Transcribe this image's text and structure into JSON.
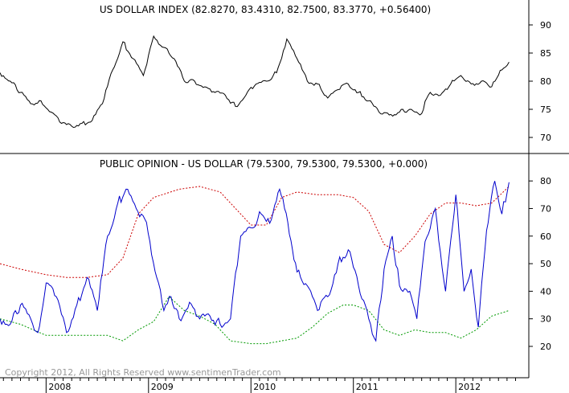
{
  "footer": "Copyright 2012, All Rights Reserved  www.sentimenTrader.com",
  "colors": {
    "price": "#000000",
    "opinion": "#0000cc",
    "upper_band": "#cc0000",
    "lower_band": "#009900"
  },
  "x_axis": {
    "range": [
      2007.55,
      2012.65
    ],
    "labels": [
      {
        "label": "2008",
        "x": 2008.0
      },
      {
        "label": "2009",
        "x": 2009.0
      },
      {
        "label": "2010",
        "x": 2010.0
      },
      {
        "label": "2011",
        "x": 2011.0
      },
      {
        "label": "2012",
        "x": 2012.0
      }
    ]
  },
  "chart_data": [
    {
      "type": "line",
      "title": "US DOLLAR INDEX (82.8270, 83.4310, 82.7500, 83.3770, +0.56400)",
      "ylim": [
        69,
        93
      ],
      "y_ticks": [
        70,
        75,
        80,
        85,
        90
      ],
      "grid": false,
      "series": [
        {
          "x": [
            2007.55,
            2007.65,
            2007.75,
            2007.85,
            2007.95,
            2008.05,
            2008.15,
            2008.25,
            2008.35,
            2008.45,
            2008.55,
            2008.65,
            2008.75,
            2008.85,
            2008.95,
            2009.05,
            2009.15,
            2009.25,
            2009.35,
            2009.45,
            2009.55,
            2009.65,
            2009.75,
            2009.85,
            2009.95,
            2010.05,
            2010.15,
            2010.25,
            2010.35,
            2010.45,
            2010.55,
            2010.65,
            2010.75,
            2010.85,
            2010.95,
            2011.05,
            2011.15,
            2011.25,
            2011.35,
            2011.45,
            2011.55,
            2011.65,
            2011.75,
            2011.85,
            2011.95,
            2012.05,
            2012.15,
            2012.25,
            2012.35,
            2012.45,
            2012.52
          ],
          "values": [
            81.5,
            80.0,
            78.0,
            76.0,
            76.5,
            74.5,
            72.5,
            72.0,
            72.5,
            73.0,
            76.0,
            82.0,
            87.0,
            84.0,
            81.0,
            88.0,
            86.0,
            84.0,
            80.0,
            80.0,
            79.0,
            78.0,
            77.5,
            75.5,
            77.5,
            79.5,
            80.0,
            81.5,
            87.5,
            84.0,
            80.0,
            79.5,
            77.0,
            78.5,
            79.5,
            78.0,
            76.5,
            74.5,
            74.0,
            74.5,
            75.0,
            74.0,
            78.0,
            77.5,
            79.5,
            81.0,
            79.5,
            80.0,
            79.0,
            82.0,
            83.4
          ]
        }
      ]
    },
    {
      "type": "line",
      "title": "PUBLIC OPINION - US DOLLAR (79.5300, 79.5300, 79.5300, +0.000)",
      "ylim": [
        13,
        85
      ],
      "y_ticks": [
        20,
        30,
        40,
        50,
        60,
        70,
        80
      ],
      "grid": false,
      "series": [
        {
          "x": [
            2007.55,
            2007.65,
            2007.75,
            2007.85,
            2007.92,
            2008.0,
            2008.1,
            2008.2,
            2008.3,
            2008.4,
            2008.5,
            2008.6,
            2008.7,
            2008.78,
            2008.88,
            2008.98,
            2009.08,
            2009.15,
            2009.22,
            2009.3,
            2009.4,
            2009.5,
            2009.6,
            2009.7,
            2009.8,
            2009.9,
            2010.0,
            2010.1,
            2010.2,
            2010.28,
            2010.36,
            2010.45,
            2010.55,
            2010.65,
            2010.75,
            2010.85,
            2010.95,
            2011.05,
            2011.15,
            2011.22,
            2011.3,
            2011.38,
            2011.45,
            2011.55,
            2011.62,
            2011.7,
            2011.8,
            2011.9,
            2012.0,
            2012.08,
            2012.15,
            2012.22,
            2012.3,
            2012.38,
            2012.45,
            2012.52
          ],
          "values": [
            30,
            28,
            35,
            30,
            25,
            43,
            38,
            25,
            35,
            45,
            33,
            60,
            72,
            77,
            70,
            65,
            45,
            33,
            38,
            30,
            36,
            30,
            31,
            28,
            30,
            60,
            63,
            68,
            66,
            77,
            65,
            47,
            42,
            33,
            38,
            50,
            55,
            42,
            30,
            22,
            48,
            60,
            42,
            40,
            30,
            58,
            70,
            40,
            75,
            40,
            48,
            27,
            62,
            80,
            68,
            79.53
          ]
        },
        {
          "x": [
            2007.55,
            2007.75,
            2008.0,
            2008.2,
            2008.4,
            2008.6,
            2008.75,
            2008.9,
            2009.05,
            2009.3,
            2009.5,
            2009.7,
            2009.85,
            2010.0,
            2010.15,
            2010.3,
            2010.45,
            2010.65,
            2010.85,
            2011.0,
            2011.15,
            2011.3,
            2011.45,
            2011.6,
            2011.75,
            2011.9,
            2012.05,
            2012.2,
            2012.35,
            2012.52
          ],
          "values": [
            50,
            48,
            46,
            45,
            45,
            46,
            52,
            68,
            74,
            77,
            78,
            76,
            70,
            64,
            64,
            74,
            76,
            75,
            75,
            74,
            69,
            57,
            54,
            60,
            68,
            72,
            72,
            71,
            72,
            78
          ]
        },
        {
          "x": [
            2007.55,
            2007.75,
            2008.0,
            2008.2,
            2008.4,
            2008.6,
            2008.75,
            2008.9,
            2009.05,
            2009.2,
            2009.35,
            2009.5,
            2009.65,
            2009.8,
            2010.0,
            2010.15,
            2010.3,
            2010.45,
            2010.6,
            2010.75,
            2010.9,
            2011.0,
            2011.15,
            2011.3,
            2011.45,
            2011.6,
            2011.75,
            2011.9,
            2012.05,
            2012.2,
            2012.35,
            2012.52
          ],
          "values": [
            30,
            28,
            24,
            24,
            24,
            24,
            22,
            26,
            29,
            38,
            33,
            31,
            28,
            22,
            21,
            21,
            22,
            23,
            27,
            32,
            35,
            35,
            33,
            26,
            24,
            26,
            25,
            25,
            23,
            26,
            31,
            33
          ]
        }
      ]
    }
  ]
}
